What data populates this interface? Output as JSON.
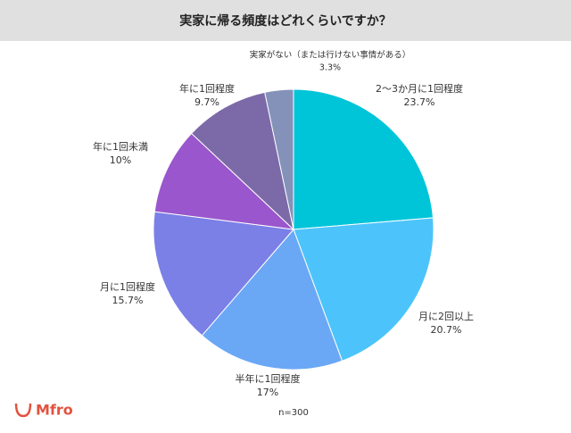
{
  "chart_data": {
    "type": "pie",
    "title": "実家に帰る頻度はどれくらいですか？",
    "categories": [
      "2〜3か月に1回程度",
      "月に2回以上",
      "半年に1回程度",
      "月に1回程度",
      "年に1回未満",
      "年に1回程度",
      "実家がない（または行けない事情がある）"
    ],
    "values": [
      23.7,
      20.7,
      17,
      15.7,
      10,
      9.7,
      3.3
    ],
    "value_labels": [
      "23.7%",
      "20.7%",
      "17%",
      "15.7%",
      "10%",
      "9.7%",
      "3.3%"
    ],
    "colors": [
      "#00c5d9",
      "#4cc4fb",
      "#6aa8f6",
      "#7b80e6",
      "#9a56cc",
      "#7c6aa8",
      "#8492ba"
    ],
    "note": "n=300"
  },
  "logo": "Mfro"
}
